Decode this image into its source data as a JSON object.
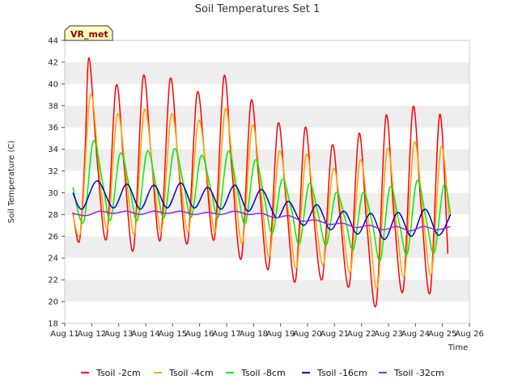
{
  "chart_data": {
    "type": "line",
    "title": "Soil Temperatures Set 1",
    "xlabel": "Time",
    "ylabel": "Soil Temperature (C)",
    "badge": "VR_met",
    "ylim": [
      18,
      44
    ],
    "xlim": [
      11,
      26
    ],
    "y_ticks": [
      18,
      20,
      22,
      24,
      26,
      28,
      30,
      32,
      34,
      36,
      38,
      40,
      42,
      44
    ],
    "x_ticks": [
      {
        "pos": 11,
        "label": "Aug 11"
      },
      {
        "pos": 12,
        "label": "Aug 12"
      },
      {
        "pos": 13,
        "label": "Aug 13"
      },
      {
        "pos": 14,
        "label": "Aug 14"
      },
      {
        "pos": 15,
        "label": "Aug 15"
      },
      {
        "pos": 16,
        "label": "Aug 16"
      },
      {
        "pos": 17,
        "label": "Aug 17"
      },
      {
        "pos": 18,
        "label": "Aug 18"
      },
      {
        "pos": 19,
        "label": "Aug 19"
      },
      {
        "pos": 20,
        "label": "Aug 20"
      },
      {
        "pos": 21,
        "label": "Aug 21"
      },
      {
        "pos": 22,
        "label": "Aug 22"
      },
      {
        "pos": 23,
        "label": "Aug 23"
      },
      {
        "pos": 24,
        "label": "Aug 24"
      },
      {
        "pos": 25,
        "label": "Aug 25"
      },
      {
        "pos": 26,
        "label": "Aug 26"
      }
    ],
    "grid": "horizontal bands",
    "legend_position": "bottom",
    "series": [
      {
        "name": "Tsoil -2cm",
        "color": "#ff0000",
        "x": [
          11.3,
          11.55,
          11.75,
          11.9,
          12.2,
          12.55,
          12.9,
          13.2,
          13.55,
          13.9,
          14.2,
          14.55,
          14.9,
          15.2,
          15.55,
          15.9,
          16.2,
          16.55,
          16.9,
          17.2,
          17.55,
          17.9,
          18.2,
          18.55,
          18.9,
          19.2,
          19.55,
          19.9,
          20.2,
          20.55,
          20.9,
          21.2,
          21.55,
          21.9,
          22.2,
          22.55,
          22.9,
          23.2,
          23.55,
          23.9,
          24.2,
          24.55,
          24.9,
          25.2
        ],
        "y": [
          28.2,
          25.6,
          33.5,
          42.4,
          33.0,
          25.8,
          39.8,
          32.5,
          24.8,
          40.6,
          33.5,
          25.7,
          40.4,
          33.0,
          25.4,
          39.1,
          33.0,
          25.8,
          40.7,
          32.0,
          24.0,
          38.4,
          31.0,
          23.0,
          36.3,
          29.5,
          21.9,
          35.9,
          28.5,
          22.1,
          34.3,
          28.0,
          21.5,
          35.4,
          27.0,
          19.8,
          37.0,
          28.0,
          21.1,
          37.8,
          29.0,
          20.9,
          37.2,
          24.4
        ]
      },
      {
        "name": "Tsoil -4cm",
        "color": "#ffa500",
        "x": [
          11.3,
          11.6,
          11.95,
          12.3,
          12.6,
          12.95,
          13.3,
          13.6,
          13.95,
          14.3,
          14.6,
          14.95,
          15.3,
          15.6,
          15.95,
          16.3,
          16.6,
          16.95,
          17.3,
          17.6,
          17.95,
          18.3,
          18.6,
          18.95,
          19.3,
          19.6,
          19.95,
          20.3,
          20.6,
          20.95,
          21.3,
          21.6,
          21.95,
          22.3,
          22.6,
          22.95,
          23.3,
          23.6,
          23.95,
          24.3,
          24.6,
          24.95,
          25.25
        ],
        "y": [
          28.0,
          26.6,
          39.0,
          31.5,
          26.8,
          37.2,
          31.0,
          26.4,
          37.6,
          31.2,
          26.6,
          37.2,
          31.0,
          26.5,
          36.6,
          31.0,
          26.6,
          37.7,
          30.5,
          25.5,
          36.2,
          29.5,
          24.2,
          33.8,
          28.0,
          23.2,
          33.5,
          27.5,
          23.5,
          32.2,
          27.0,
          22.8,
          33.0,
          26.5,
          21.4,
          34.0,
          27.0,
          22.5,
          34.6,
          27.5,
          22.6,
          34.2,
          27.5
        ]
      },
      {
        "name": "Tsoil -8cm",
        "color": "#00ee00",
        "x": [
          11.3,
          11.7,
          12.05,
          12.4,
          12.7,
          13.05,
          13.4,
          13.7,
          14.05,
          14.4,
          14.7,
          15.05,
          15.4,
          15.7,
          16.05,
          16.4,
          16.7,
          17.05,
          17.4,
          17.7,
          18.05,
          18.4,
          18.7,
          19.05,
          19.4,
          19.7,
          20.05,
          20.4,
          20.7,
          21.05,
          21.4,
          21.7,
          22.05,
          22.4,
          22.7,
          23.05,
          23.4,
          23.7,
          24.05,
          24.4,
          24.7,
          25.05,
          25.3
        ],
        "y": [
          30.5,
          27.3,
          34.7,
          31.0,
          27.5,
          33.6,
          30.5,
          27.5,
          33.8,
          30.5,
          27.8,
          34.0,
          30.8,
          27.8,
          33.4,
          30.5,
          27.8,
          33.8,
          30.2,
          27.2,
          33.0,
          29.5,
          26.3,
          31.2,
          28.5,
          25.3,
          30.8,
          28.0,
          25.2,
          30.0,
          27.5,
          24.8,
          30.0,
          27.2,
          23.8,
          30.5,
          27.2,
          24.4,
          31.1,
          27.5,
          24.5,
          30.7,
          28.0
        ]
      },
      {
        "name": "Tsoil -16cm",
        "color": "#0000cc",
        "x": [
          11.3,
          11.65,
          12.2,
          12.8,
          13.3,
          13.8,
          14.3,
          14.8,
          15.3,
          15.8,
          16.3,
          16.8,
          17.3,
          17.8,
          18.3,
          18.85,
          19.3,
          19.85,
          20.35,
          20.85,
          21.35,
          21.85,
          22.35,
          22.85,
          23.35,
          23.85,
          24.35,
          24.85,
          25.3
        ],
        "y": [
          30.0,
          28.5,
          31.1,
          28.6,
          30.8,
          28.5,
          30.7,
          28.6,
          30.9,
          28.6,
          30.5,
          28.5,
          30.7,
          28.3,
          30.3,
          27.7,
          29.2,
          27.0,
          28.9,
          26.6,
          28.3,
          26.2,
          28.1,
          25.7,
          28.2,
          26.0,
          28.5,
          26.1,
          28.0
        ]
      },
      {
        "name": "Tsoil -32cm",
        "color": "#a020f0",
        "x": [
          11.3,
          11.8,
          12.3,
          12.8,
          13.3,
          13.8,
          14.3,
          14.8,
          15.3,
          15.8,
          16.3,
          16.8,
          17.3,
          17.8,
          18.3,
          18.8,
          19.3,
          19.8,
          20.3,
          20.8,
          21.3,
          21.8,
          22.3,
          22.8,
          23.3,
          23.8,
          24.3,
          24.8,
          25.3
        ],
        "y": [
          28.1,
          27.9,
          28.3,
          28.1,
          28.3,
          28.0,
          28.3,
          28.1,
          28.3,
          28.0,
          28.2,
          28.0,
          28.3,
          28.0,
          28.1,
          27.7,
          27.9,
          27.4,
          27.5,
          27.1,
          27.2,
          26.8,
          27.0,
          26.6,
          26.9,
          26.5,
          26.9,
          26.6,
          26.9
        ]
      }
    ]
  }
}
